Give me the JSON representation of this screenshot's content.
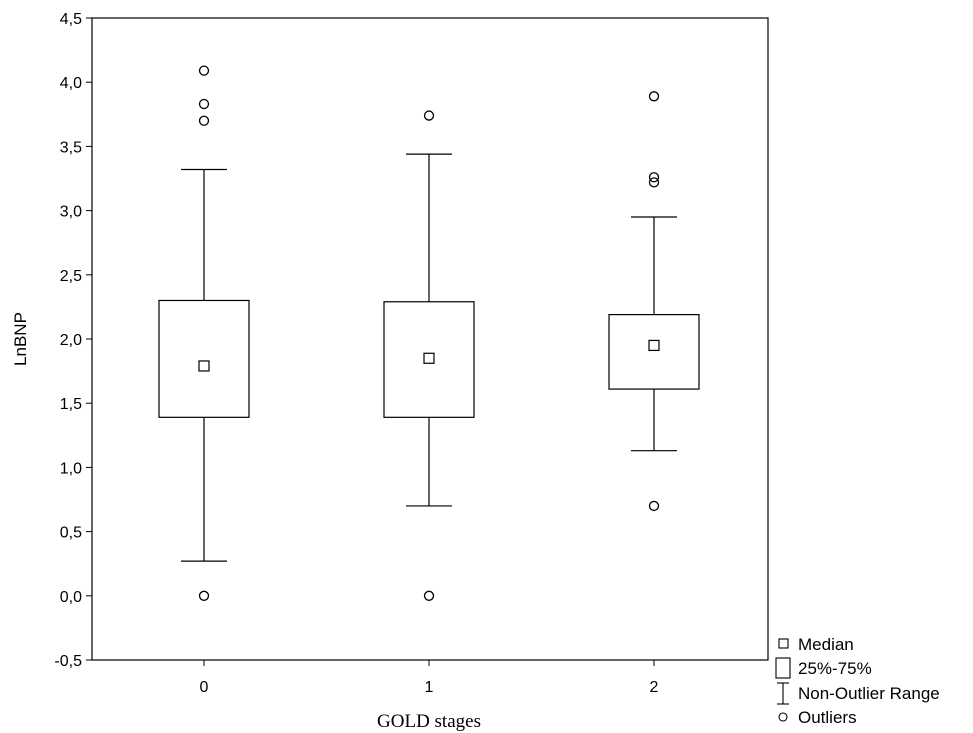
{
  "chart_data": {
    "type": "box",
    "xlabel": "GOLD stages",
    "ylabel": "LnBNP",
    "ylim": [
      -0.5,
      4.5
    ],
    "yticks": [
      -0.5,
      0.0,
      0.5,
      1.0,
      1.5,
      2.0,
      2.5,
      3.0,
      3.5,
      4.0,
      4.5
    ],
    "ytick_labels": [
      "-0,5",
      "0,0",
      "0,5",
      "1,0",
      "1,5",
      "2,0",
      "2,5",
      "3,0",
      "3,5",
      "4,0",
      "4,5"
    ],
    "categories": [
      "0",
      "1",
      "2"
    ],
    "boxes": [
      {
        "category": "0",
        "median": 1.79,
        "q1": 1.39,
        "q3": 2.3,
        "whisker_low": 0.27,
        "whisker_high": 3.32,
        "outliers": [
          4.09,
          3.83,
          3.7,
          0.0
        ]
      },
      {
        "category": "1",
        "median": 1.85,
        "q1": 1.39,
        "q3": 2.29,
        "whisker_low": 0.7,
        "whisker_high": 3.44,
        "outliers": [
          3.74,
          0.0
        ]
      },
      {
        "category": "2",
        "median": 1.95,
        "q1": 1.61,
        "q3": 2.19,
        "whisker_low": 1.13,
        "whisker_high": 2.95,
        "outliers": [
          3.89,
          3.26,
          3.22,
          0.7
        ]
      }
    ],
    "legend": {
      "position": "bottom-right, outside",
      "items": [
        {
          "symbol": "square",
          "label": "Median"
        },
        {
          "symbol": "box",
          "label": "25%-75%"
        },
        {
          "symbol": "whisker",
          "label": "Non-Outlier Range"
        },
        {
          "symbol": "circle",
          "label": "Outliers"
        }
      ]
    },
    "grid": false
  }
}
